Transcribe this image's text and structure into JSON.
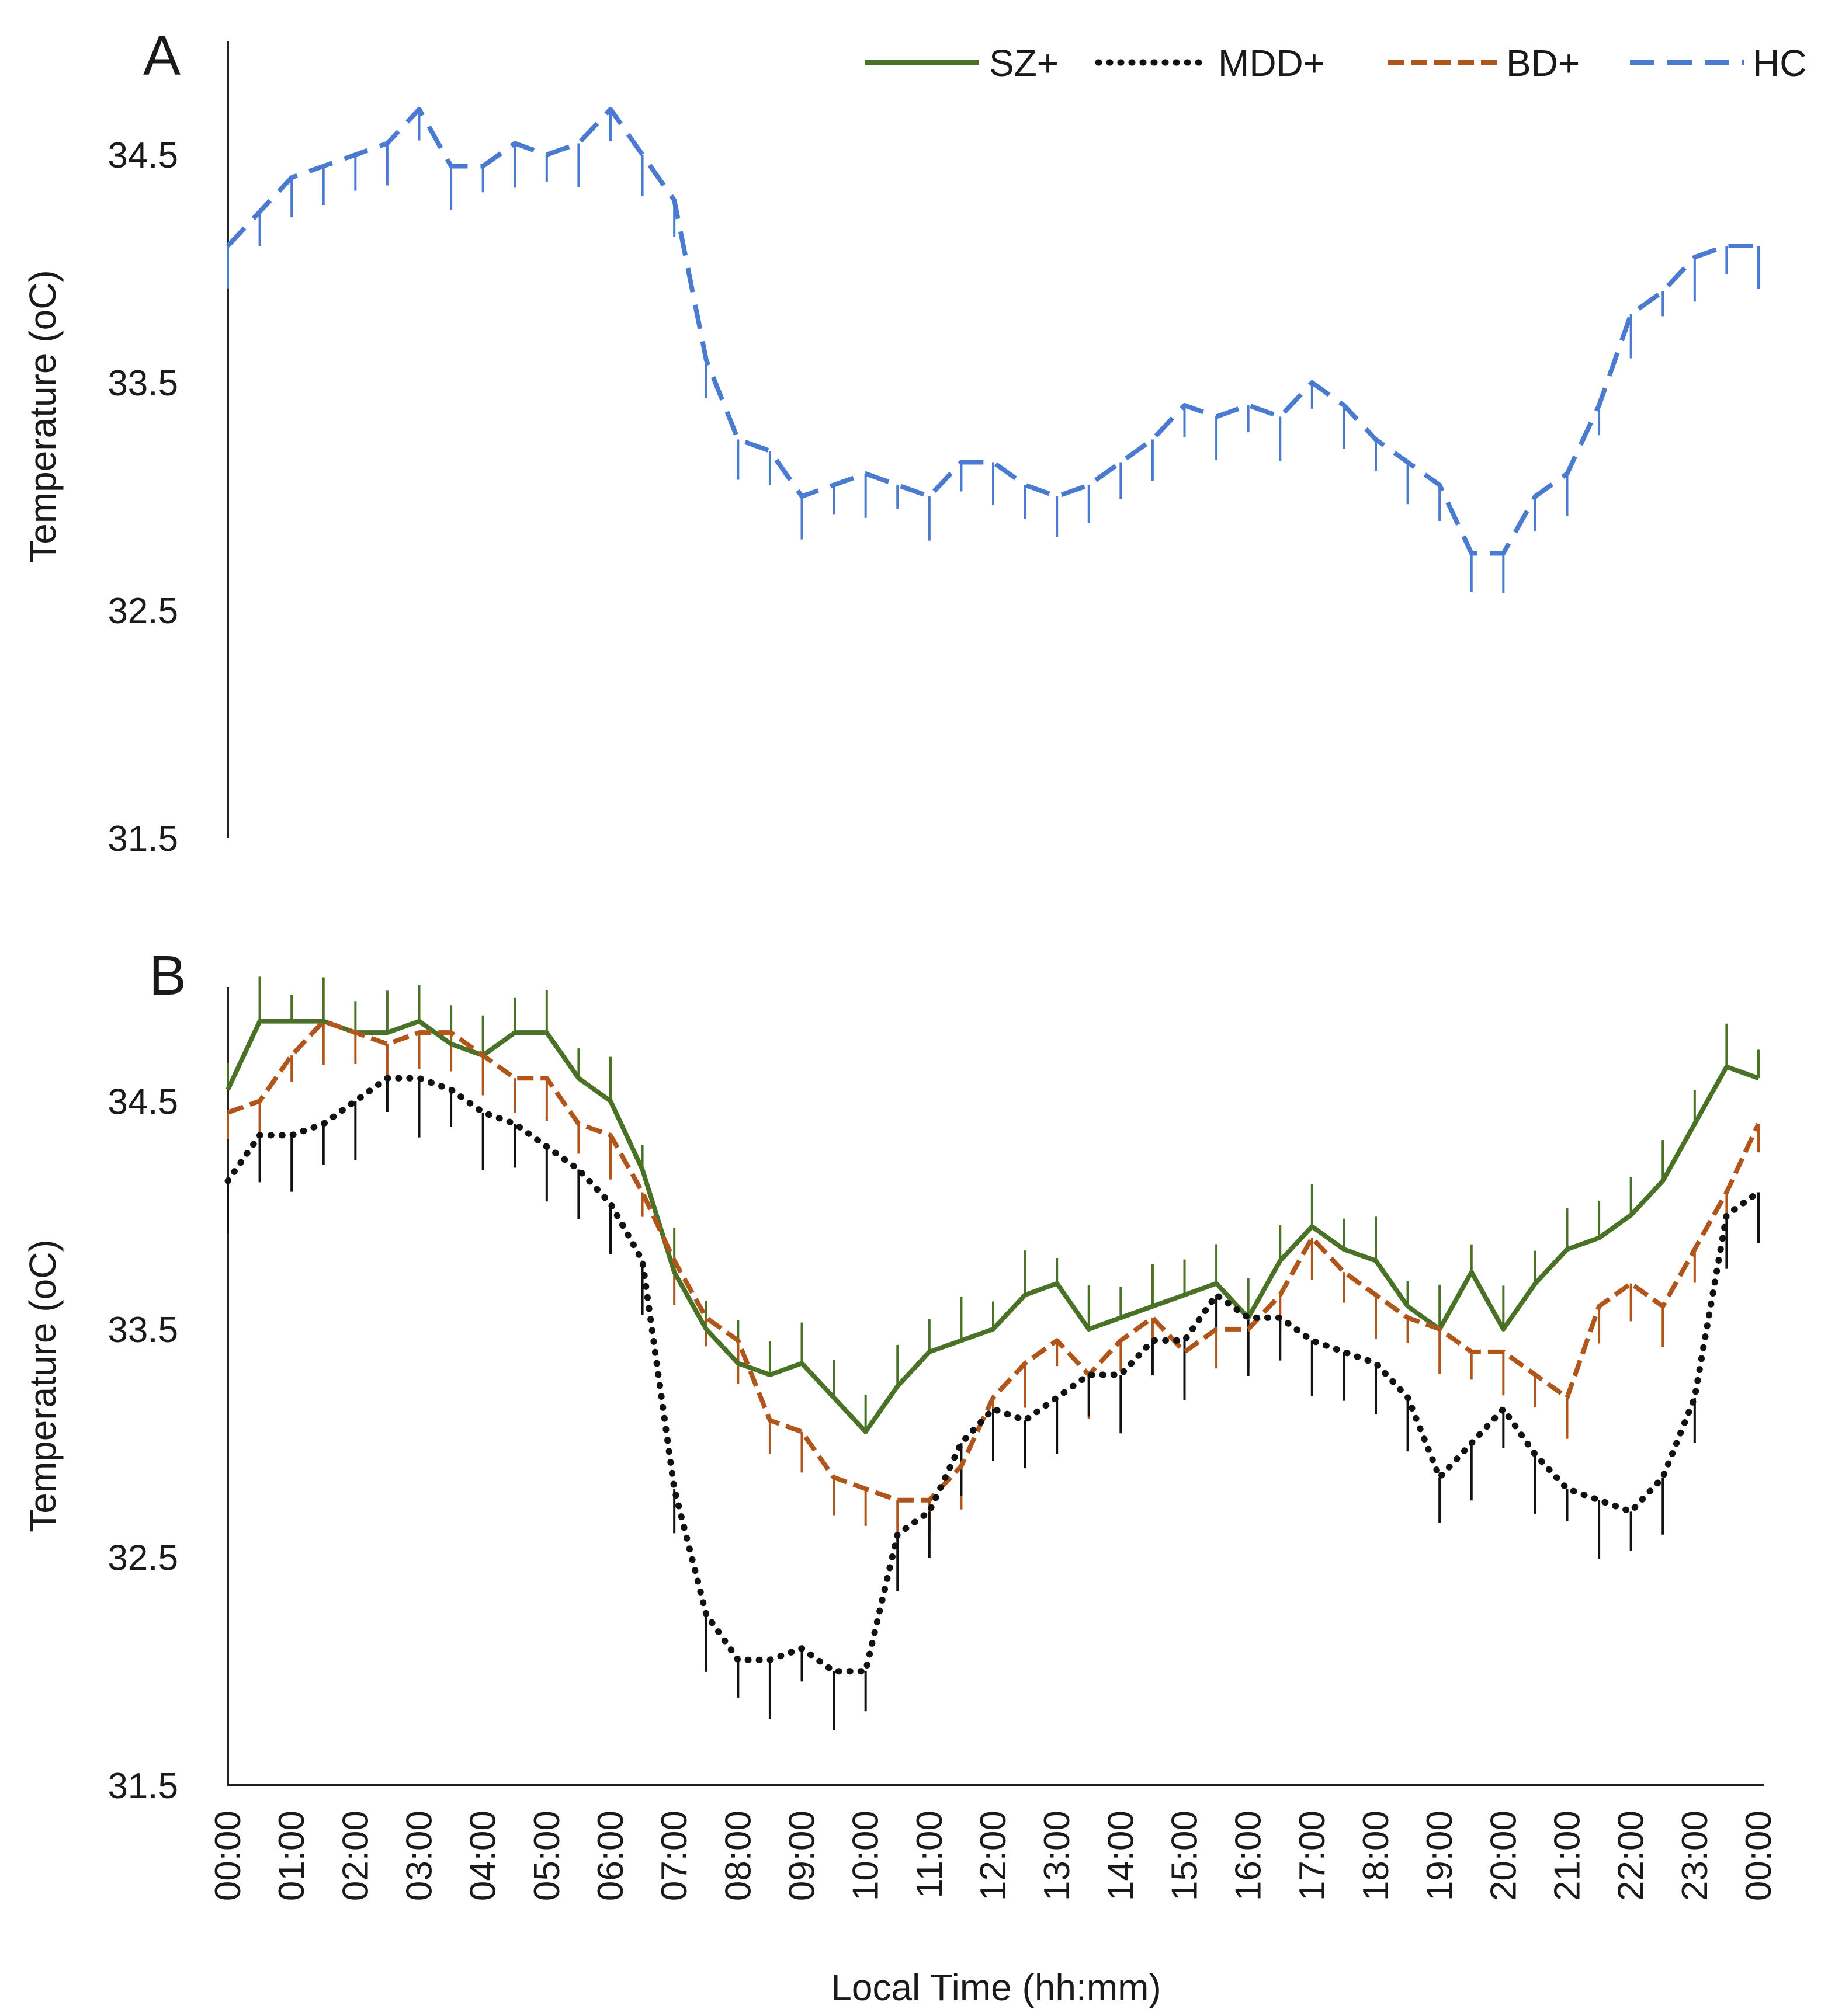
{
  "figure": {
    "x_axis_title": "Local Time (hh:mm)",
    "x_tick_labels": [
      "00:00",
      "01:00",
      "02:00",
      "03:00",
      "04:00",
      "05:00",
      "06:00",
      "07:00",
      "08:00",
      "09:00",
      "10:00",
      "11:00",
      "12:00",
      "13:00",
      "14:00",
      "15:00",
      "16:00",
      "17:00",
      "18:00",
      "19:00",
      "20:00",
      "21:00",
      "22:00",
      "23:00",
      "00:00"
    ]
  },
  "legend": {
    "items": [
      {
        "key": "SZ+",
        "label": "SZ+",
        "color": "#4a7226",
        "dash": "solid"
      },
      {
        "key": "MDD+",
        "label": "MDD+",
        "color": "#111111",
        "dash": "dotted"
      },
      {
        "key": "BD+",
        "label": "BD+",
        "color": "#b0561b",
        "dash": "dashed"
      },
      {
        "key": "HC",
        "label": "HC",
        "color": "#4b7bd0",
        "dash": "long-dashed"
      }
    ]
  },
  "chart_data": [
    {
      "type": "line",
      "panel": "A",
      "title": "A",
      "xlabel": "",
      "ylabel": "Temperature (oC)",
      "ylim": [
        31.5,
        35.0
      ],
      "yticks": [
        31.5,
        32.5,
        33.5,
        34.5
      ],
      "ytick_labels": [
        "31.5",
        "32.5",
        "33.5",
        "34.5"
      ],
      "x_hours": [
        0,
        0.5,
        1,
        1.5,
        2,
        2.5,
        3,
        3.5,
        4,
        4.5,
        5,
        5.5,
        6,
        6.5,
        7,
        7.5,
        8,
        8.5,
        9,
        9.5,
        10,
        10.5,
        11,
        11.5,
        12,
        12.5,
        13,
        13.5,
        14,
        14.5,
        15,
        15.5,
        16,
        16.5,
        17,
        17.5,
        18,
        18.5,
        19,
        19.5,
        20,
        20.5,
        21,
        21.5,
        22,
        22.5,
        23,
        23.5,
        24
      ],
      "series": [
        {
          "name": "HC",
          "color": "#4b7bd0",
          "error_minus": 0.15,
          "values": [
            34.1,
            34.25,
            34.4,
            34.45,
            34.5,
            34.55,
            34.7,
            34.45,
            34.45,
            34.55,
            34.5,
            34.55,
            34.7,
            34.5,
            34.3,
            33.6,
            33.25,
            33.2,
            33.0,
            33.05,
            33.1,
            33.05,
            33.0,
            33.15,
            33.15,
            33.05,
            33.0,
            33.05,
            33.15,
            33.25,
            33.4,
            33.35,
            33.4,
            33.35,
            33.5,
            33.4,
            33.25,
            33.15,
            33.05,
            32.75,
            32.75,
            33.0,
            33.1,
            33.4,
            33.8,
            33.9,
            34.05,
            34.1,
            34.1
          ]
        }
      ]
    },
    {
      "type": "line",
      "panel": "B",
      "title": "B",
      "xlabel": "Local Time (hh:mm)",
      "ylabel": "Temperature (oC)",
      "ylim": [
        31.5,
        35.0
      ],
      "yticks": [
        31.5,
        32.5,
        33.5,
        34.5
      ],
      "ytick_labels": [
        "31.5",
        "32.5",
        "33.5",
        "34.5"
      ],
      "x_hours": [
        0,
        0.5,
        1,
        1.5,
        2,
        2.5,
        3,
        3.5,
        4,
        4.5,
        5,
        5.5,
        6,
        6.5,
        7,
        7.5,
        8,
        8.5,
        9,
        9.5,
        10,
        10.5,
        11,
        11.5,
        12,
        12.5,
        13,
        13.5,
        14,
        14.5,
        15,
        15.5,
        16,
        16.5,
        17,
        17.5,
        18,
        18.5,
        19,
        19.5,
        20,
        20.5,
        21,
        21.5,
        22,
        22.5,
        23,
        23.5,
        24
      ],
      "series": [
        {
          "name": "SZ+",
          "color": "#4a7226",
          "error_plus": 0.15,
          "values": [
            34.55,
            34.85,
            34.85,
            34.85,
            34.8,
            34.8,
            34.85,
            34.75,
            34.7,
            34.8,
            34.8,
            34.6,
            34.5,
            34.2,
            33.75,
            33.5,
            33.35,
            33.3,
            33.35,
            33.2,
            33.05,
            33.25,
            33.4,
            33.45,
            33.5,
            33.65,
            33.7,
            33.5,
            33.55,
            33.6,
            33.65,
            33.7,
            33.55,
            33.8,
            33.95,
            33.85,
            33.8,
            33.6,
            33.5,
            33.75,
            33.5,
            33.7,
            33.85,
            33.9,
            34.0,
            34.15,
            34.4,
            34.65,
            34.6
          ]
        },
        {
          "name": "BD+",
          "color": "#b0561b",
          "error_minus": 0.15,
          "values": [
            34.45,
            34.5,
            34.7,
            34.85,
            34.8,
            34.75,
            34.8,
            34.8,
            34.7,
            34.6,
            34.6,
            34.4,
            34.35,
            34.1,
            33.8,
            33.55,
            33.45,
            33.1,
            33.05,
            32.85,
            32.8,
            32.75,
            32.75,
            32.9,
            33.2,
            33.35,
            33.45,
            33.3,
            33.45,
            33.55,
            33.4,
            33.5,
            33.5,
            33.65,
            33.9,
            33.75,
            33.65,
            33.55,
            33.5,
            33.4,
            33.4,
            33.3,
            33.2,
            33.6,
            33.7,
            33.6,
            33.85,
            34.1,
            34.4
          ]
        },
        {
          "name": "MDD+",
          "color": "#111111",
          "error_minus": 0.2,
          "values": [
            34.15,
            34.35,
            34.35,
            34.4,
            34.5,
            34.6,
            34.6,
            34.55,
            34.45,
            34.4,
            34.3,
            34.2,
            34.05,
            33.8,
            32.8,
            32.25,
            32.05,
            32.05,
            32.1,
            32.0,
            32.0,
            32.6,
            32.7,
            33.0,
            33.15,
            33.1,
            33.2,
            33.3,
            33.3,
            33.45,
            33.45,
            33.65,
            33.55,
            33.55,
            33.45,
            33.4,
            33.35,
            33.2,
            32.85,
            33.0,
            33.15,
            32.95,
            32.8,
            32.75,
            32.7,
            32.85,
            33.2,
            34.0,
            34.1
          ]
        }
      ]
    }
  ]
}
